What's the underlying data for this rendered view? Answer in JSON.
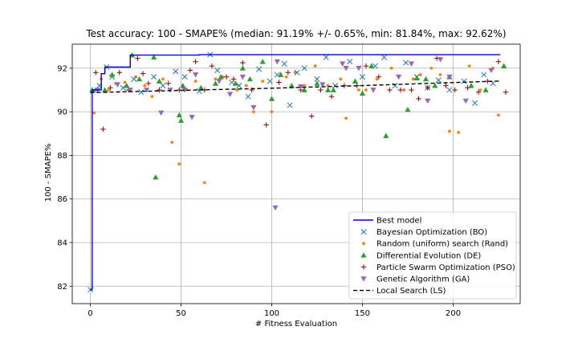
{
  "chart_data": {
    "type": "scatter",
    "title": "Test accuracy: 100 - SMAPE% (median: 91.19% +/- 0.65%, min: 81.84%, max: 92.62%)",
    "xlabel": "# Fitness Evaluation",
    "ylabel": "100 - SMAPE%",
    "xlim": [
      -10,
      237
    ],
    "ylim": [
      81.2,
      93.1
    ],
    "xticks": [
      0,
      50,
      100,
      150,
      200
    ],
    "yticks": [
      82,
      84,
      86,
      88,
      90,
      92
    ],
    "grid": true,
    "legend_position": "lower-right",
    "colors": {
      "best": "#0000dd",
      "bo": "#1f77b4",
      "rand": "#ff7f0e",
      "de": "#2ca02c",
      "pso": "#8b0000",
      "ga": "#9467bd",
      "ls": "#000000"
    },
    "series": [
      {
        "key": "best",
        "name": "Best model",
        "style": "step",
        "x": [
          0,
          1,
          6,
          8,
          22,
          60,
          226
        ],
        "y": [
          81.84,
          91.0,
          91.75,
          92.05,
          92.6,
          92.62,
          92.62
        ]
      },
      {
        "key": "bo",
        "name": "Bayesian Optimization (BO)",
        "style": "marker-x",
        "x": [
          0,
          2,
          5,
          9,
          12,
          18,
          24,
          28,
          35,
          40,
          47,
          52,
          60,
          66,
          70,
          78,
          82,
          87,
          93,
          99,
          103,
          107,
          110,
          114,
          118,
          125,
          130,
          135,
          143,
          150,
          157,
          162,
          168,
          174,
          180,
          186,
          192,
          198,
          206,
          212,
          217,
          222
        ],
        "y": [
          81.84,
          91.0,
          91.2,
          92.05,
          91.6,
          91.1,
          91.5,
          90.9,
          91.6,
          91.2,
          91.85,
          91.6,
          90.95,
          92.62,
          91.9,
          91.35,
          91.2,
          90.7,
          91.95,
          91.4,
          91.7,
          92.2,
          90.3,
          91.8,
          92.0,
          91.5,
          92.5,
          91.2,
          92.3,
          91.6,
          92.1,
          92.5,
          91.2,
          92.25,
          91.6,
          91.1,
          91.45,
          91.0,
          91.4,
          90.4,
          91.7,
          91.3
        ]
      },
      {
        "key": "rand",
        "name": "Random (uniform) search (Rand)",
        "style": "marker-dot",
        "x": [
          2,
          6,
          10,
          14,
          19,
          25,
          30,
          34,
          40,
          45,
          49,
          53,
          58,
          63,
          69,
          73,
          81,
          86,
          90,
          95,
          100,
          108,
          113,
          118,
          124,
          131,
          138,
          141,
          148,
          152,
          158,
          166,
          173,
          178,
          182,
          188,
          193,
          198,
          203,
          209,
          215,
          222,
          225
        ],
        "y": [
          89.95,
          91.5,
          91.0,
          91.3,
          91.35,
          91.6,
          91.2,
          90.7,
          91.5,
          88.6,
          87.6,
          91.0,
          91.4,
          86.75,
          91.5,
          91.6,
          91.0,
          91.2,
          90.0,
          91.4,
          90.0,
          91.6,
          91.8,
          91.2,
          92.1,
          91.2,
          91.5,
          89.7,
          91.0,
          91.0,
          91.5,
          92.0,
          91.0,
          91.5,
          91.7,
          92.0,
          91.7,
          89.1,
          89.05,
          92.1,
          91.0,
          92.0,
          89.85
        ]
      },
      {
        "key": "de",
        "name": "Differential Evolution (DE)",
        "style": "marker-triangle-up",
        "x": [
          1,
          8,
          12,
          20,
          23,
          27,
          35,
          36,
          38,
          49,
          50,
          51,
          61,
          69,
          72,
          80,
          84,
          88,
          95,
          100,
          105,
          111,
          118,
          125,
          131,
          134,
          146,
          150,
          155,
          163,
          175,
          180,
          185,
          190,
          198,
          210,
          218,
          228
        ],
        "y": [
          91.0,
          91.0,
          91.7,
          91.2,
          92.6,
          91.5,
          92.5,
          87.0,
          91.4,
          89.85,
          89.6,
          91.2,
          91.1,
          91.3,
          91.6,
          91.3,
          92.0,
          91.5,
          92.3,
          90.6,
          91.7,
          91.2,
          91.0,
          91.3,
          91.0,
          91.0,
          91.4,
          90.85,
          92.1,
          88.9,
          90.1,
          91.55,
          91.5,
          91.2,
          91.6,
          91.2,
          91.0,
          92.1
        ]
      },
      {
        "key": "pso",
        "name": "Particle Swarm Optimization (PSO)",
        "style": "marker-plus",
        "x": [
          3,
          7,
          11,
          16,
          21,
          26,
          29,
          32,
          38,
          43,
          49,
          55,
          58,
          63,
          67,
          75,
          79,
          84,
          89,
          97,
          104,
          109,
          116,
          122,
          127,
          133,
          140,
          147,
          152,
          159,
          165,
          171,
          177,
          181,
          186,
          191,
          196,
          201,
          208,
          214,
          219,
          225,
          229
        ],
        "y": [
          91.8,
          89.2,
          91.1,
          91.8,
          91.0,
          92.45,
          91.75,
          91.3,
          91.0,
          91.3,
          91.0,
          91.9,
          92.3,
          91.0,
          92.1,
          91.6,
          91.5,
          92.25,
          91.0,
          89.4,
          91.35,
          91.8,
          91.0,
          89.8,
          91.0,
          90.7,
          91.2,
          91.2,
          92.1,
          91.6,
          91.0,
          91.0,
          91.0,
          90.6,
          91.1,
          92.45,
          91.2,
          91.0,
          91.1,
          90.9,
          91.4,
          92.3,
          90.9
        ]
      },
      {
        "key": "ga",
        "name": "Genetic Algorithm (GA)",
        "style": "marker-triangle-down",
        "x": [
          4,
          15,
          22,
          31,
          39,
          44,
          52,
          56,
          58,
          71,
          77,
          84,
          90,
          102,
          103,
          116,
          128,
          139,
          141,
          148,
          156,
          170,
          177,
          186,
          193,
          198,
          207,
          221
        ],
        "y": [
          91.0,
          91.25,
          91.0,
          91.0,
          89.95,
          91.0,
          91.0,
          89.75,
          91.7,
          91.4,
          90.8,
          91.6,
          90.2,
          85.6,
          92.3,
          91.15,
          91.25,
          92.2,
          92.0,
          92.0,
          91.0,
          91.6,
          92.2,
          90.5,
          92.4,
          91.6,
          90.5,
          91.9
        ]
      },
      {
        "key": "ls",
        "name": "Local Search (LS)",
        "style": "dashed-line",
        "x": [
          0,
          50,
          100,
          150,
          200,
          226
        ],
        "y": [
          90.88,
          90.98,
          91.08,
          91.2,
          91.34,
          91.41
        ]
      }
    ]
  }
}
